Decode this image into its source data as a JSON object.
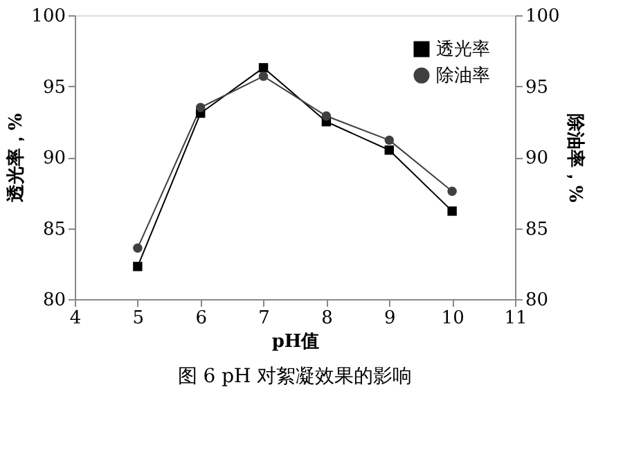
{
  "chart_data": {
    "type": "line",
    "title": "图 6  pH 对絮凝效果的影响",
    "xlabel": "pH值",
    "ylabel": "透光率，%",
    "y2label": "除油率，%",
    "x": [
      5,
      6,
      7,
      8,
      9,
      10
    ],
    "series": [
      {
        "name": "透光率",
        "color": "#000000",
        "marker": "square",
        "values": [
          82.3,
          93.1,
          96.3,
          92.5,
          90.5,
          86.2
        ]
      },
      {
        "name": "除油率",
        "color": "#404040",
        "marker": "circle",
        "values": [
          83.6,
          93.5,
          95.7,
          92.9,
          91.2,
          87.6
        ]
      }
    ],
    "xlim": [
      4,
      11
    ],
    "xticks": [
      4,
      5,
      6,
      7,
      8,
      9,
      10,
      11
    ],
    "ylim": [
      80,
      100
    ],
    "yticks": [
      80,
      85,
      90,
      95,
      100
    ],
    "y2lim": [
      80,
      100
    ],
    "y2ticks": [
      80,
      85,
      90,
      95,
      100
    ],
    "grid": false,
    "legend": "top right",
    "line_style": "solid"
  }
}
